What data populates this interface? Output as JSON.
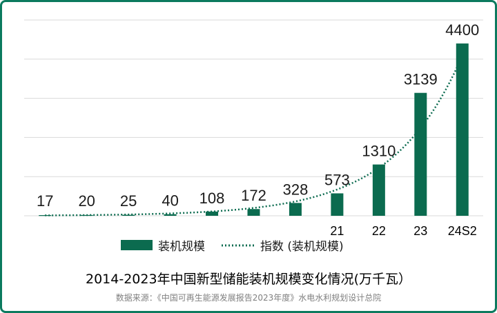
{
  "title": "2014-2023年中国新型储能装机规模变化情况(万千瓦）",
  "source": "数据来源：《中国可再生能源发展报告2023年度》水电水利规划设计总院",
  "colors": {
    "bar": "#0b6b4f",
    "border": "#0b7a5e"
  },
  "chart_data": {
    "type": "bar",
    "categories": [
      "",
      "",
      "",
      "",
      "",
      "",
      "",
      "21",
      "22",
      "23",
      "24S2"
    ],
    "series": [
      {
        "name": "装机规模",
        "values": [
          17,
          20,
          25,
          40,
          108,
          172,
          328,
          573,
          1310,
          3139,
          4400
        ]
      }
    ],
    "trendline": {
      "name": "指数 (装机规模)",
      "type": "exponential"
    },
    "data_labels": [
      "17",
      "20",
      "25",
      "40",
      "108",
      "172",
      "328",
      "573",
      "1310",
      "3139",
      "4400"
    ],
    "ylim": [
      0,
      5000
    ],
    "grid": true,
    "legend": "bottom"
  }
}
